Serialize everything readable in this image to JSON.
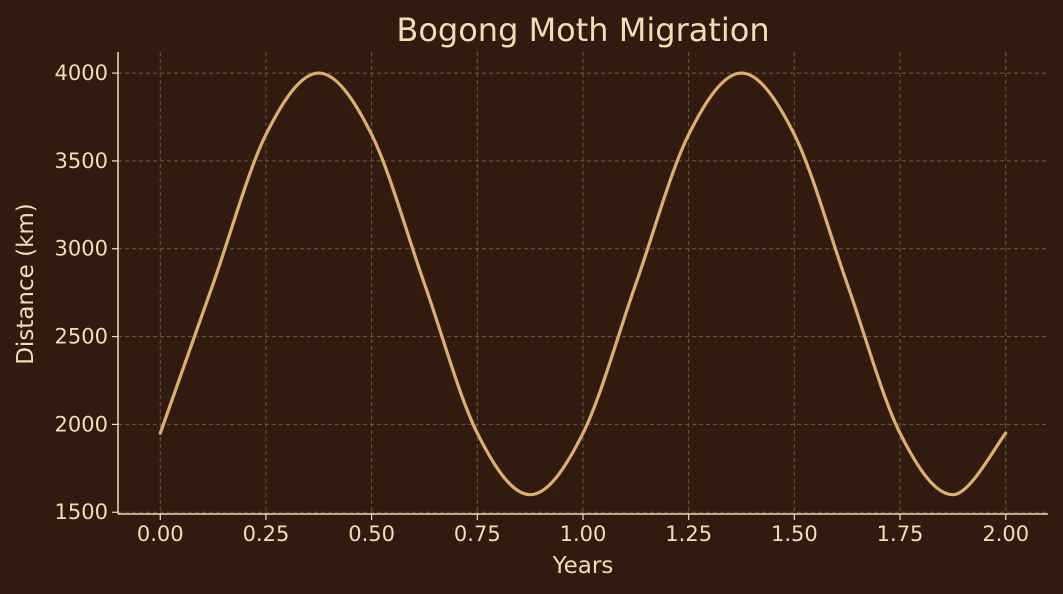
{
  "colors": {
    "background": "#311a10",
    "text": "#f3dcb6",
    "line": "#dcb06c",
    "grid": "#6d5a43",
    "spine": "#f3dcb6"
  },
  "chart_data": {
    "type": "line",
    "title": "Bogong Moth Migration",
    "xlabel": "Years",
    "ylabel": "Distance (km)",
    "xlim": [
      -0.1,
      2.1
    ],
    "ylim": [
      1490,
      4120
    ],
    "xticks": [
      0,
      0.25,
      0.5,
      0.75,
      1,
      1.25,
      1.5,
      1.75,
      2
    ],
    "xtick_labels": [
      "0.00",
      "0.25",
      "0.50",
      "0.75",
      "1.00",
      "1.25",
      "1.50",
      "1.75",
      "2.00"
    ],
    "yticks": [
      1500,
      2000,
      2500,
      3000,
      3500,
      4000
    ],
    "ytick_labels": [
      "1500",
      "2000",
      "2500",
      "3000",
      "3500",
      "4000"
    ],
    "grid": true,
    "legend": false,
    "series": [
      {
        "x": [
          0,
          0.125,
          0.25,
          0.375,
          0.5,
          0.625,
          0.75,
          0.875,
          1,
          1.125,
          1.25,
          1.375,
          1.5,
          1.625,
          1.75,
          1.875,
          2
        ],
        "values": [
          1950,
          2800,
          3650,
          4000,
          3650,
          2800,
          1950,
          1600,
          1950,
          2800,
          3650,
          4000,
          3650,
          2800,
          1950,
          1600,
          1950
        ]
      }
    ]
  }
}
